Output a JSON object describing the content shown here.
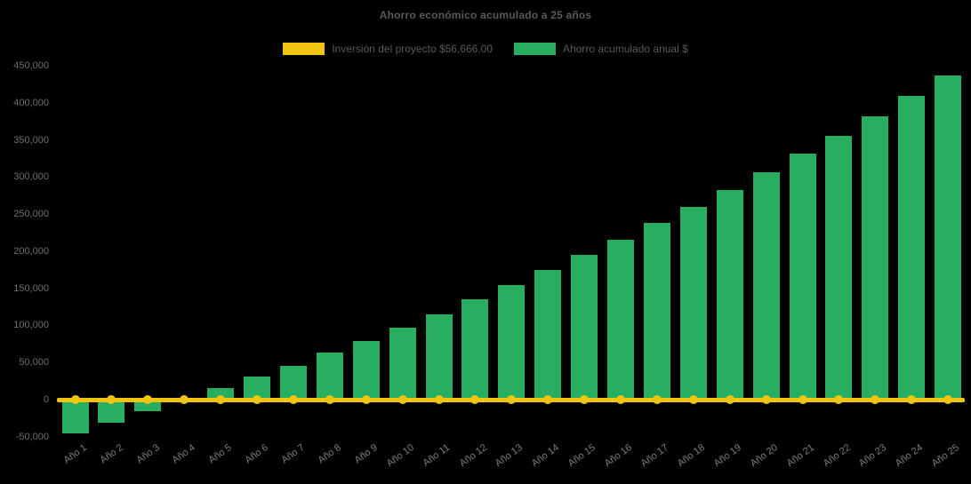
{
  "title": "Ahorro económico acumulado a 25 años",
  "legend": {
    "items": [
      {
        "label": "Inversión del proyecto $56,666.00",
        "color": "#F1C40F"
      },
      {
        "label": "Ahorro acumulado anual $",
        "color": "#27AE60"
      }
    ]
  },
  "colors": {
    "background": "#000000",
    "bar_green": "#27AE60",
    "line_yellow": "#F1C40F",
    "title_text": "#595959",
    "axis_text": "#6e6e6e"
  },
  "chart_data": {
    "type": "bar",
    "title": "Ahorro económico acumulado a 25 años",
    "categories": [
      "Año 1",
      "Año 2",
      "Año 3",
      "Año 4",
      "Año 5",
      "Año 6",
      "Año 7",
      "Año 8",
      "Año 9",
      "Año 10",
      "Año 11",
      "Año 12",
      "Año 13",
      "Año 14",
      "Año 15",
      "Año 16",
      "Año 17",
      "Año 18",
      "Año 19",
      "Año 20",
      "Año 21",
      "Año 22",
      "Año 23",
      "Año 24",
      "Año 25"
    ],
    "series": [
      {
        "name": "Inversión del proyecto $56,666.00",
        "type": "line",
        "color": "#F1C40F",
        "marker": "circle",
        "values": [
          0,
          0,
          0,
          0,
          0,
          0,
          0,
          0,
          0,
          0,
          0,
          0,
          0,
          0,
          0,
          0,
          0,
          0,
          0,
          0,
          0,
          0,
          0,
          0,
          0
        ]
      },
      {
        "name": "Ahorro acumulado anual $",
        "type": "bar",
        "color": "#27AE60",
        "values": [
          -45000,
          -31000,
          -15500,
          500,
          15000,
          31000,
          45500,
          63000,
          79000,
          97500,
          115500,
          135000,
          154500,
          175000,
          195000,
          215500,
          238000,
          259500,
          282500,
          306000,
          331000,
          356000,
          382000,
          409000,
          437000
        ]
      }
    ],
    "xlabel": "",
    "ylabel": "",
    "ylim": [
      -50000,
      450000
    ],
    "yticks": [
      450000,
      400000,
      350000,
      300000,
      250000,
      200000,
      150000,
      100000,
      50000,
      0,
      -50000
    ],
    "grid": false,
    "legend_position": "top"
  }
}
